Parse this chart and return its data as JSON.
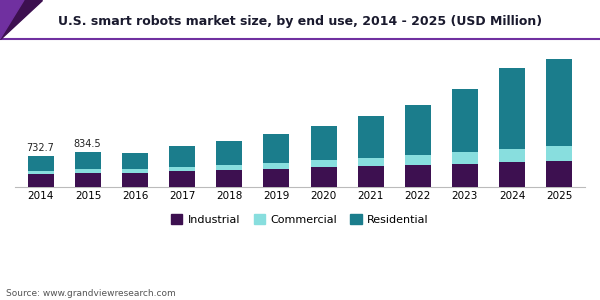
{
  "title": "U.S. smart robots market size, by end use, 2014 - 2025 (USD Million)",
  "source": "Source: www.grandviewresearch.com",
  "years": [
    2014,
    2015,
    2016,
    2017,
    2018,
    2019,
    2020,
    2021,
    2022,
    2023,
    2024,
    2025
  ],
  "industrial": [
    290,
    330,
    330,
    370,
    400,
    430,
    460,
    490,
    520,
    550,
    580,
    610
  ],
  "commercial": [
    80,
    95,
    90,
    105,
    120,
    140,
    165,
    195,
    230,
    270,
    310,
    355
  ],
  "residential": [
    363,
    410,
    380,
    490,
    570,
    680,
    830,
    990,
    1190,
    1500,
    1950,
    2080
  ],
  "annotations": {
    "2014": "732.7",
    "2015": "834.5"
  },
  "color_industrial": "#3d1050",
  "color_commercial": "#88dede",
  "color_residential": "#1b7d8c",
  "color_title_line": "#7030a0",
  "background_color": "#ffffff",
  "bar_width": 0.55,
  "legend_labels": [
    "Industrial",
    "Commercial",
    "Residential"
  ],
  "ylim_factor": 1.18
}
